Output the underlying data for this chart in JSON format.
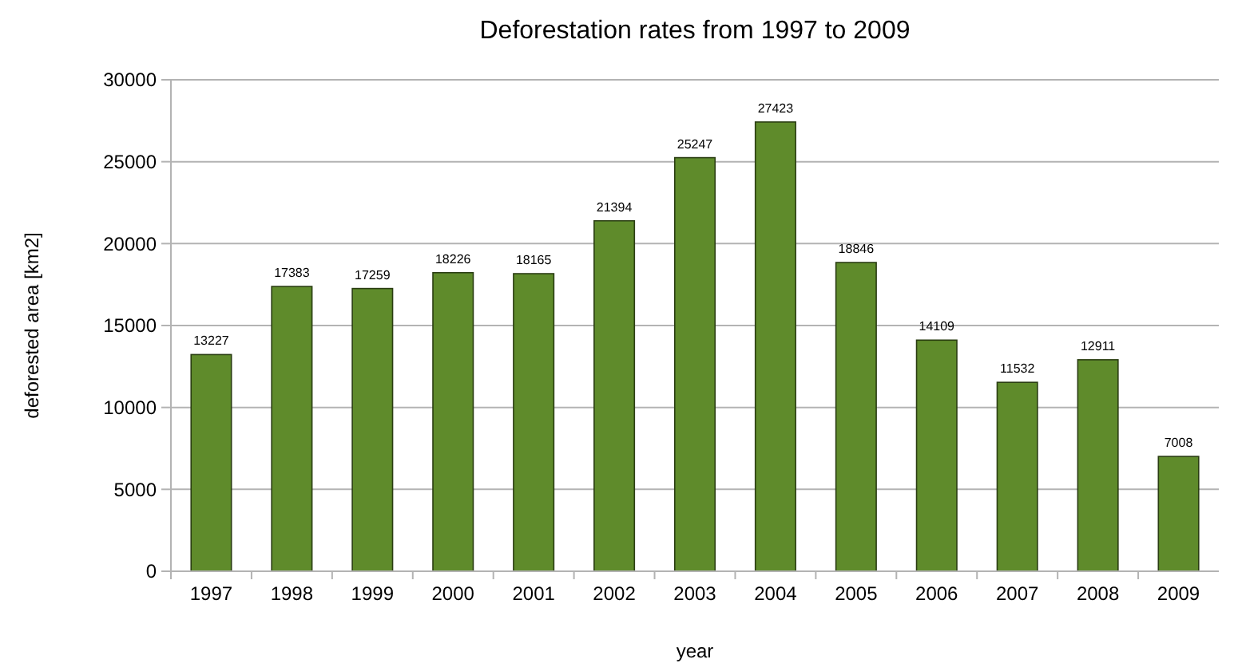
{
  "chart_data": {
    "type": "bar",
    "title": "Deforestation rates from 1997 to 2009",
    "xlabel": "year",
    "ylabel": "deforested area [km2]",
    "categories": [
      "1997",
      "1998",
      "1999",
      "2000",
      "2001",
      "2002",
      "2003",
      "2004",
      "2005",
      "2006",
      "2007",
      "2008",
      "2009"
    ],
    "values": [
      13227,
      17383,
      17259,
      18226,
      18165,
      21394,
      25247,
      27423,
      18846,
      14109,
      11532,
      12911,
      7008
    ],
    "color": "#5f8b2b",
    "ylim": [
      0,
      30000
    ],
    "yticks": [
      0,
      5000,
      10000,
      15000,
      20000,
      25000,
      30000
    ],
    "grid": "y",
    "data_labels": true
  }
}
